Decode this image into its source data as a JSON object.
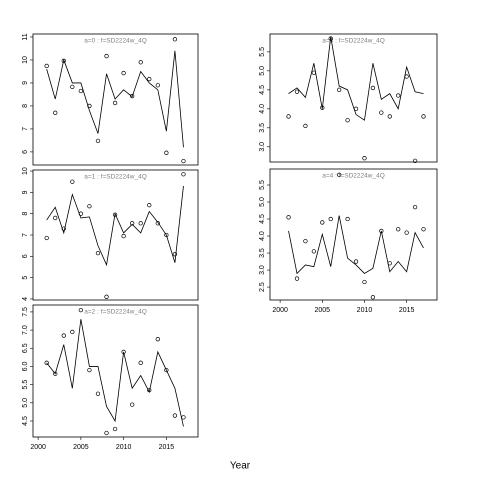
{
  "xlabel": "Year",
  "chart_data": [
    {
      "type": "line",
      "title": "a=0 : f=SD2224w_4Q",
      "x": [
        2001,
        2002,
        2003,
        2004,
        2005,
        2006,
        2007,
        2008,
        2009,
        2010,
        2011,
        2012,
        2013,
        2014,
        2015,
        2016,
        2017
      ],
      "xlim": [
        1999.4,
        2018.7
      ],
      "ylim": [
        5.43,
        11.13
      ],
      "yticks": [
        6,
        7,
        8,
        9,
        10,
        11
      ],
      "series": [
        {
          "color": "#000000",
          "marker": "circle",
          "values": [
            9.74,
            7.7,
            9.96,
            8.83,
            8.65,
            8.0,
            6.48,
            10.17,
            8.13,
            9.43,
            8.43,
            9.9,
            9.17,
            8.9,
            5.96,
            10.9,
            5.6
          ]
        },
        {
          "color": "#000000",
          "marker": "line",
          "values": [
            9.6,
            8.3,
            10.0,
            9.0,
            9.0,
            7.8,
            6.8,
            9.4,
            8.3,
            8.7,
            8.4,
            9.5,
            9.0,
            8.7,
            6.9,
            10.4,
            6.2
          ]
        }
      ]
    },
    {
      "type": "line",
      "title": "a=1 : f=SD2224w_4Q",
      "x": [
        2001,
        2002,
        2003,
        2004,
        2005,
        2006,
        2007,
        2008,
        2009,
        2010,
        2011,
        2012,
        2013,
        2014,
        2015,
        2016,
        2017
      ],
      "xlim": [
        1999.4,
        2018.7
      ],
      "ylim": [
        3.95,
        10.05
      ],
      "yticks": [
        4,
        5,
        6,
        7,
        8,
        9,
        10
      ],
      "series": [
        {
          "color": "#000000",
          "marker": "circle",
          "values": [
            6.86,
            7.8,
            7.3,
            9.5,
            8.0,
            8.35,
            6.15,
            4.1,
            7.95,
            6.95,
            7.55,
            7.55,
            8.4,
            7.55,
            7.0,
            6.1,
            9.85
          ]
        },
        {
          "color": "#000000",
          "marker": "line",
          "values": [
            7.7,
            8.3,
            7.1,
            8.9,
            7.8,
            7.85,
            6.5,
            5.6,
            8.0,
            7.1,
            7.5,
            7.1,
            8.1,
            7.6,
            7.0,
            5.7,
            9.3
          ]
        }
      ]
    },
    {
      "type": "line",
      "title": "a=2 : f=SD2224w_4Q",
      "x": [
        2001,
        2002,
        2003,
        2004,
        2005,
        2006,
        2007,
        2008,
        2009,
        2010,
        2011,
        2012,
        2013,
        2014,
        2015,
        2016,
        2017
      ],
      "xlim": [
        1999.4,
        2018.7
      ],
      "ylim": [
        4.06,
        7.69
      ],
      "xticks": [
        2000,
        2005,
        2010,
        2015
      ],
      "yticks": [
        4.5,
        {
          "value": 5,
          "label": "5.0"
        },
        5.5,
        {
          "value": 6,
          "label": "6.0"
        },
        6.5,
        {
          "value": 7,
          "label": "7.0"
        },
        7.5
      ],
      "series": [
        {
          "color": "#000000",
          "marker": "circle",
          "values": [
            6.1,
            5.8,
            6.85,
            6.95,
            7.55,
            5.9,
            5.25,
            4.17,
            4.28,
            6.4,
            4.95,
            6.1,
            5.35,
            6.75,
            5.9,
            4.65,
            4.6
          ]
        },
        {
          "color": "#000000",
          "marker": "line",
          "values": [
            6.1,
            5.8,
            6.6,
            5.4,
            7.3,
            6.0,
            6.0,
            4.9,
            4.5,
            6.4,
            5.4,
            5.75,
            5.3,
            6.4,
            5.9,
            5.4,
            4.35
          ]
        }
      ]
    },
    {
      "type": "line",
      "title": "a=3 : f=SD2224w_4Q",
      "x": [
        2001,
        2002,
        2003,
        2004,
        2005,
        2006,
        2007,
        2008,
        2009,
        2010,
        2011,
        2012,
        2013,
        2014,
        2015,
        2016,
        2017
      ],
      "xlim": [
        1998.8,
        2018.6
      ],
      "ylim": [
        2.6,
        5.97
      ],
      "yticks": [
        {
          "value": 3,
          "label": "3.0"
        },
        3.5,
        {
          "value": 4,
          "label": "4.0"
        },
        4.5,
        {
          "value": 5,
          "label": "5.0"
        },
        5.5
      ],
      "series": [
        {
          "color": "#000000",
          "marker": "circle",
          "values": [
            3.8,
            4.45,
            3.55,
            4.95,
            4.03,
            5.85,
            4.5,
            3.7,
            4.0,
            2.7,
            4.55,
            3.9,
            3.8,
            4.35,
            4.85,
            2.63,
            3.8
          ]
        },
        {
          "color": "#000000",
          "marker": "line",
          "values": [
            4.4,
            4.55,
            4.3,
            5.2,
            4.0,
            5.9,
            4.6,
            4.5,
            3.85,
            3.7,
            5.2,
            4.25,
            4.4,
            4.0,
            5.1,
            4.45,
            4.4
          ]
        }
      ]
    },
    {
      "type": "line",
      "title": "a=4 : f=SD2224w_4Q",
      "x": [
        2001,
        2002,
        2003,
        2004,
        2005,
        2006,
        2007,
        2008,
        2009,
        2010,
        2011,
        2012,
        2013,
        2014,
        2015,
        2016,
        2017
      ],
      "xlim": [
        1998.8,
        2018.6
      ],
      "ylim": [
        2.12,
        5.97
      ],
      "xticks": [
        2000,
        2005,
        2010,
        2015
      ],
      "yticks": [
        2.5,
        {
          "value": 3,
          "label": "3.0"
        },
        3.5,
        {
          "value": 4,
          "label": "4.0"
        },
        4.5,
        {
          "value": 5,
          "label": "5.0"
        },
        5.5
      ],
      "series": [
        {
          "color": "#000000",
          "marker": "circle",
          "values": [
            4.55,
            2.75,
            3.85,
            3.55,
            4.4,
            4.5,
            5.8,
            4.5,
            3.25,
            2.65,
            2.2,
            4.15,
            3.2,
            4.2,
            4.1,
            4.85,
            4.2
          ]
        },
        {
          "color": "#000000",
          "marker": "line",
          "values": [
            4.15,
            2.9,
            3.15,
            3.1,
            4.05,
            3.1,
            4.6,
            3.35,
            3.15,
            2.9,
            3.05,
            4.15,
            2.95,
            3.25,
            2.95,
            4.1,
            3.65
          ]
        }
      ]
    }
  ]
}
